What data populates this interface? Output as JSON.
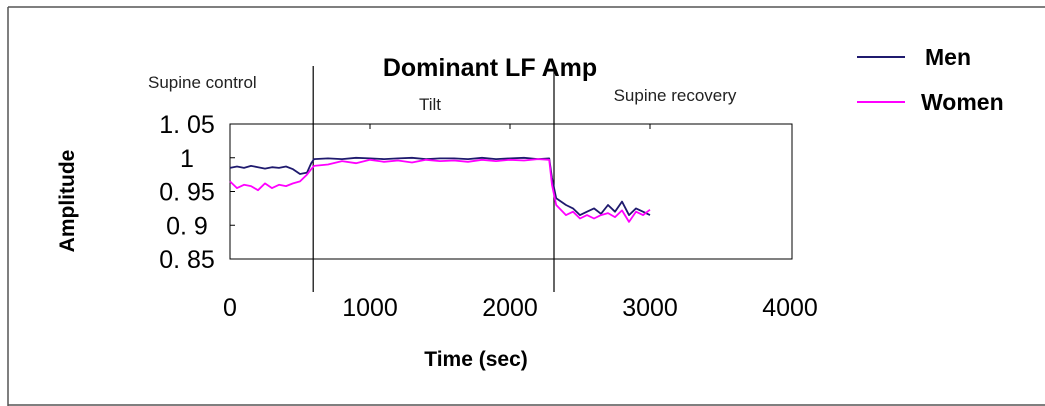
{
  "chart_data": {
    "type": "line",
    "title": "Dominant LF Amp",
    "xlabel": "Time (sec)",
    "ylabel": "Amplitude",
    "xlim": [
      0,
      4000
    ],
    "ylim": [
      0.85,
      1.05
    ],
    "x_ticks": [
      "0",
      "1000",
      "2000",
      "3000",
      "4000"
    ],
    "y_ticks": [
      "1. 05",
      "1",
      "0. 95",
      "0. 9",
      "0. 85"
    ],
    "y_tick_values": [
      1.05,
      1.0,
      0.95,
      0.9,
      0.85
    ],
    "grid": false,
    "legend_position": "top-right",
    "phases": [
      {
        "label": "Supine control",
        "boundary": 580
      },
      {
        "label": "Tilt",
        "boundary": 2300
      },
      {
        "label": "Supine recovery"
      }
    ],
    "series": [
      {
        "name": "Men",
        "color": "#1f1a6e",
        "x": [
          0,
          50,
          100,
          150,
          200,
          250,
          300,
          350,
          400,
          450,
          500,
          550,
          580,
          600,
          700,
          800,
          900,
          1000,
          1100,
          1200,
          1300,
          1400,
          1500,
          1600,
          1700,
          1800,
          1900,
          2000,
          2100,
          2200,
          2280,
          2300,
          2330,
          2400,
          2450,
          2500,
          2550,
          2600,
          2650,
          2700,
          2750,
          2800,
          2850,
          2900,
          2950,
          3000
        ],
        "y": [
          0.985,
          0.987,
          0.985,
          0.988,
          0.986,
          0.984,
          0.986,
          0.985,
          0.987,
          0.983,
          0.976,
          0.978,
          0.992,
          0.998,
          0.999,
          0.998,
          1.0,
          0.999,
          0.998,
          0.999,
          1.0,
          0.998,
          0.999,
          0.999,
          0.998,
          1.0,
          0.998,
          0.999,
          1.0,
          0.998,
          0.999,
          0.97,
          0.94,
          0.93,
          0.925,
          0.915,
          0.92,
          0.925,
          0.917,
          0.93,
          0.92,
          0.935,
          0.915,
          0.925,
          0.92,
          0.915
        ]
      },
      {
        "name": "Women",
        "color": "#ff00ff",
        "x": [
          0,
          50,
          100,
          150,
          200,
          250,
          300,
          350,
          400,
          450,
          500,
          550,
          580,
          600,
          700,
          800,
          900,
          1000,
          1100,
          1200,
          1300,
          1400,
          1500,
          1600,
          1700,
          1800,
          1900,
          2000,
          2100,
          2200,
          2280,
          2300,
          2330,
          2400,
          2450,
          2500,
          2550,
          2600,
          2650,
          2700,
          2750,
          2800,
          2850,
          2900,
          2950,
          3000
        ],
        "y": [
          0.965,
          0.955,
          0.96,
          0.958,
          0.952,
          0.962,
          0.955,
          0.96,
          0.958,
          0.962,
          0.965,
          0.975,
          0.983,
          0.988,
          0.99,
          0.995,
          0.992,
          0.997,
          0.994,
          0.996,
          0.993,
          0.997,
          0.995,
          0.996,
          0.994,
          0.997,
          0.995,
          0.997,
          0.996,
          0.998,
          0.997,
          0.96,
          0.93,
          0.915,
          0.92,
          0.91,
          0.915,
          0.91,
          0.915,
          0.918,
          0.912,
          0.922,
          0.905,
          0.92,
          0.915,
          0.923
        ]
      }
    ]
  }
}
